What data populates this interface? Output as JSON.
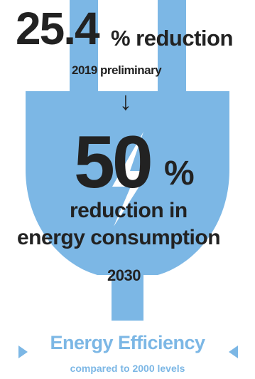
{
  "current": {
    "value": "25.4",
    "label": "% reduction",
    "year": "2019 preliminary"
  },
  "arrow_icon": "down-arrow-icon",
  "target": {
    "value": "50",
    "percent": "%",
    "line1": "reduction in",
    "line2": "energy consumption",
    "year": "2030"
  },
  "footer": {
    "title": "Energy Efficiency",
    "subtitle": "compared to 2000 levels"
  },
  "colors": {
    "plug": "#7cb7e5",
    "text": "#222222",
    "accent": "#7cb7e5"
  }
}
